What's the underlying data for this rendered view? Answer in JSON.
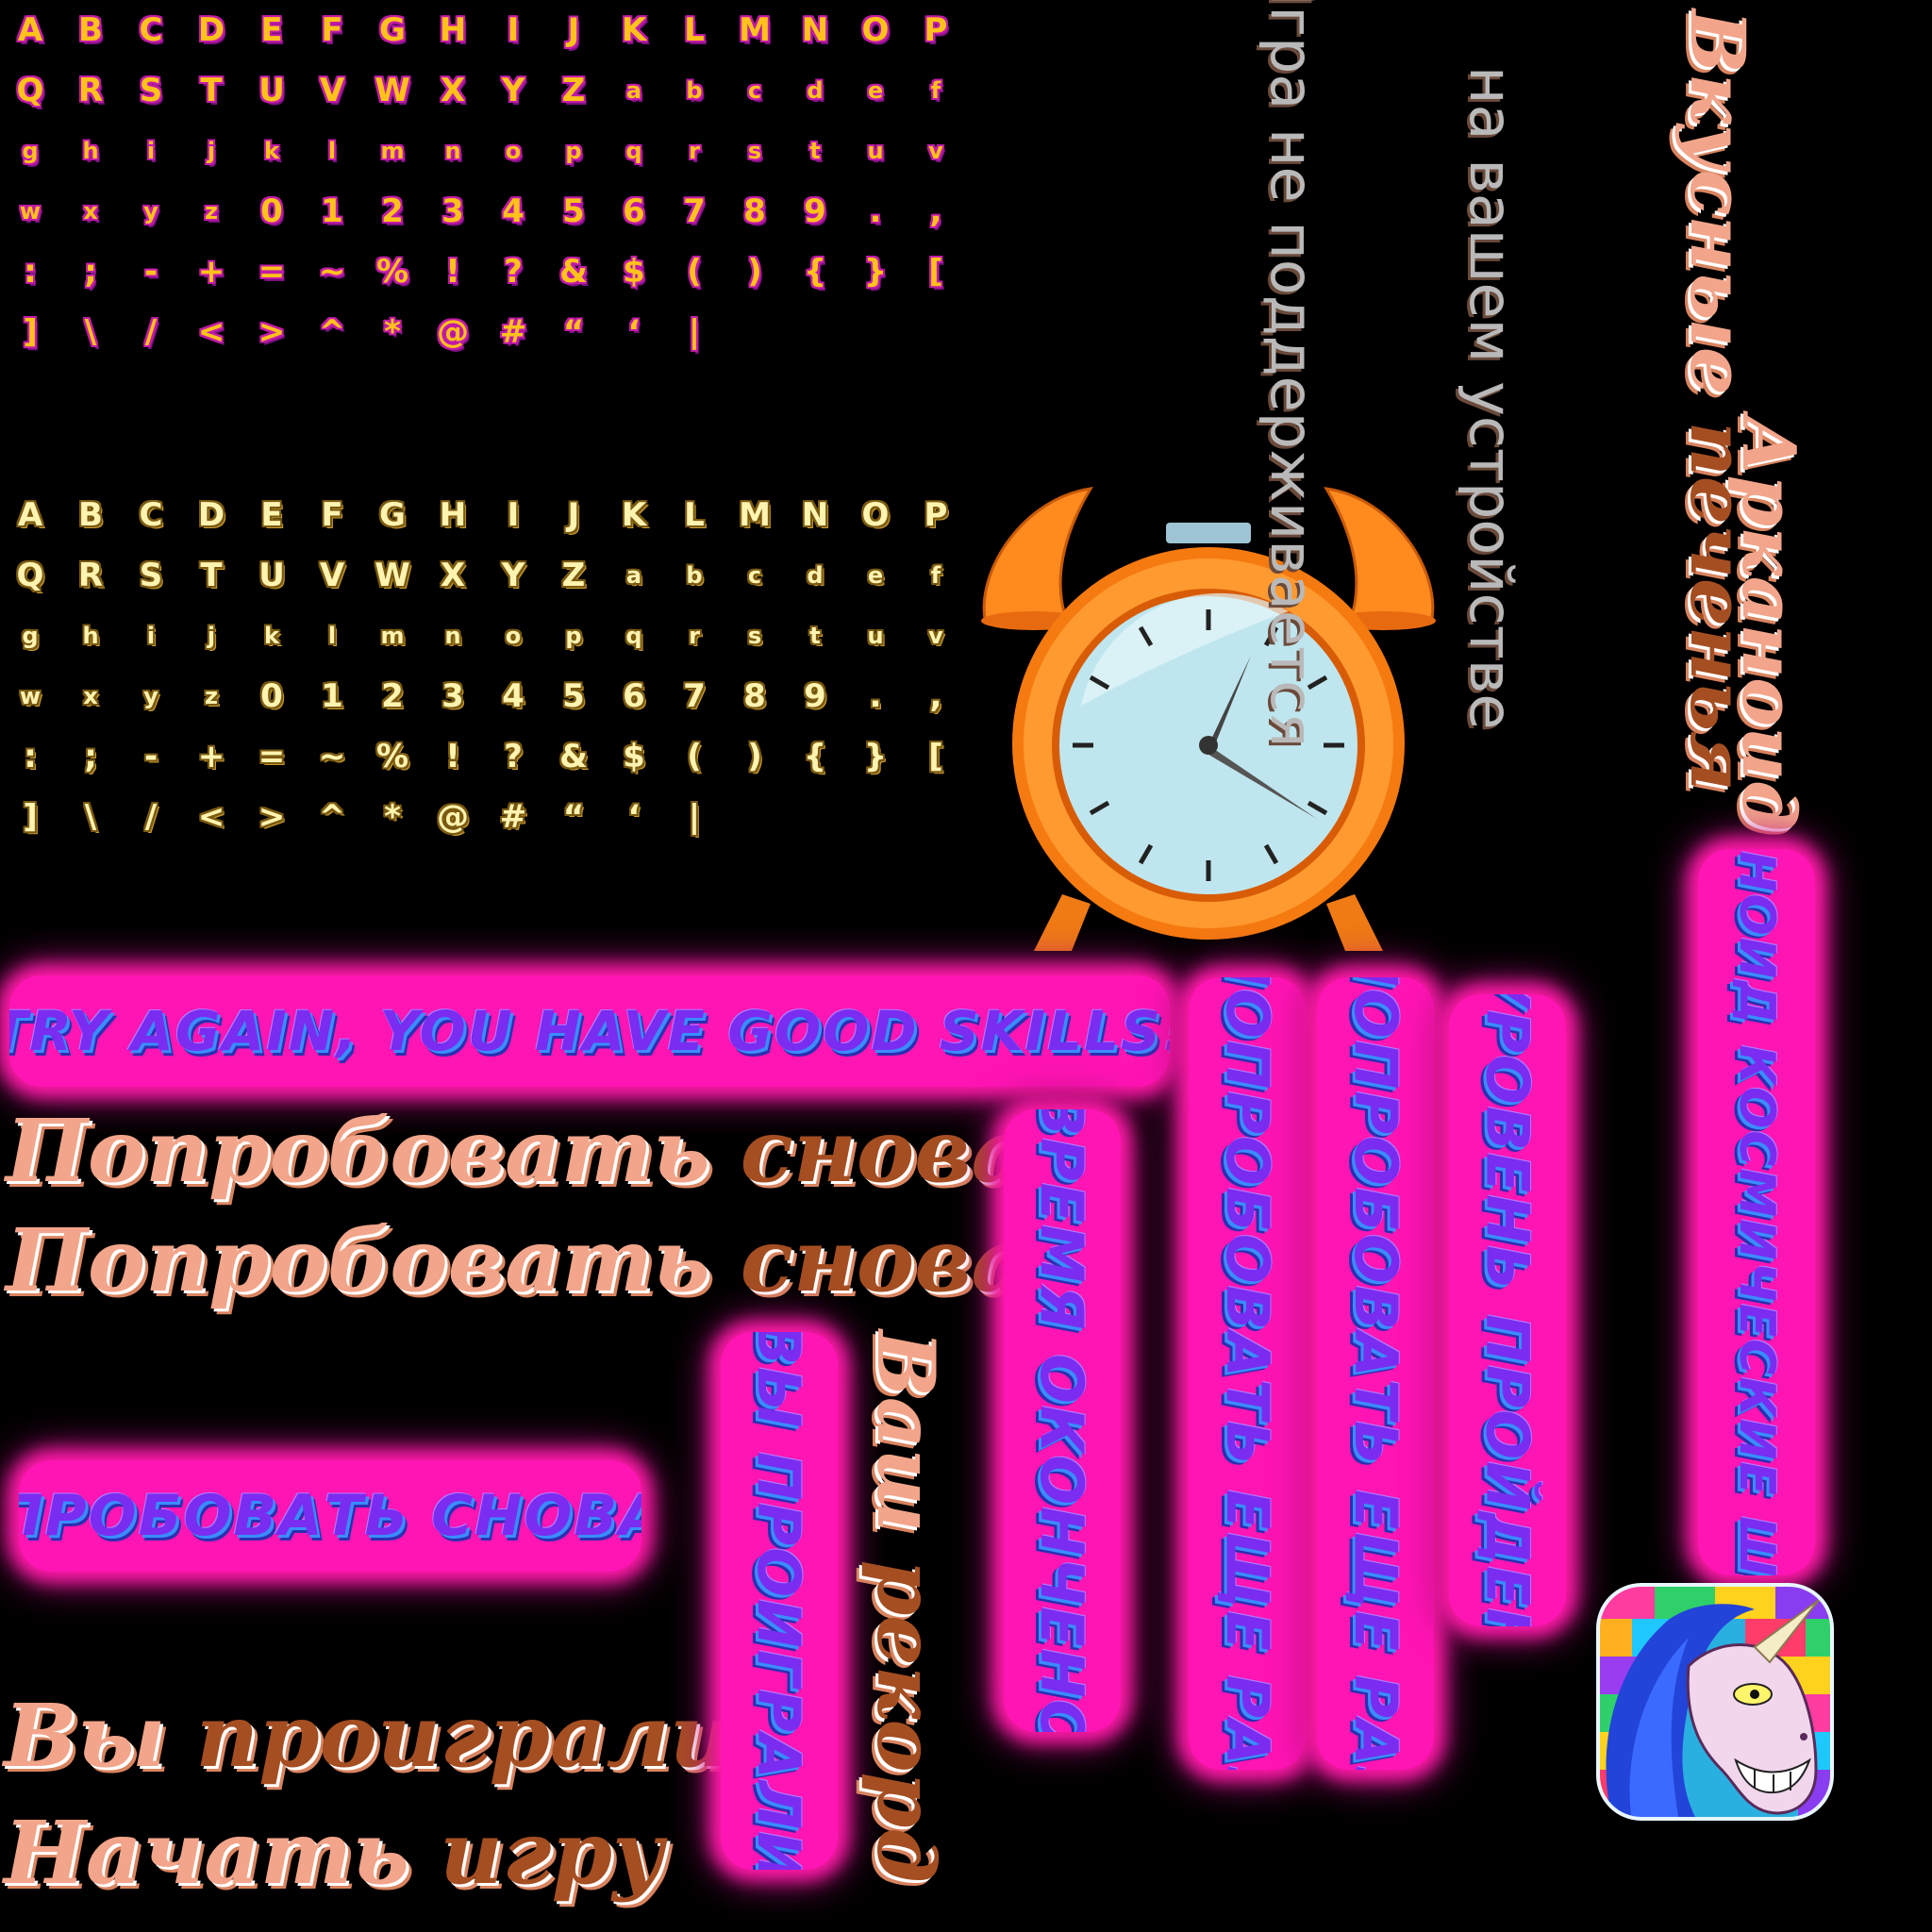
{
  "atlas_top": {
    "rows": [
      [
        "A",
        "B",
        "C",
        "D",
        "E",
        "F",
        "G",
        "H",
        "I",
        "J",
        "K",
        "L",
        "M",
        "N",
        "O",
        "P"
      ],
      [
        "Q",
        "R",
        "S",
        "T",
        "U",
        "V",
        "W",
        "X",
        "Y",
        "Z",
        "a",
        "b",
        "c",
        "d",
        "e",
        "f"
      ],
      [
        "g",
        "h",
        "i",
        "j",
        "k",
        "l",
        "m",
        "n",
        "o",
        "p",
        "q",
        "r",
        "s",
        "t",
        "u",
        "v"
      ],
      [
        "w",
        "x",
        "y",
        "z",
        "0",
        "1",
        "2",
        "3",
        "4",
        "5",
        "6",
        "7",
        "8",
        "9",
        ".",
        ","
      ],
      [
        ":",
        ";",
        "-",
        "+",
        "=",
        "~",
        "%",
        "!",
        "?",
        "&",
        "$",
        "(",
        ")",
        "{",
        "}",
        "["
      ],
      [
        "]",
        "\\",
        "/",
        "<",
        ">",
        "^",
        "*",
        "@",
        "#",
        "“",
        "‘",
        "|"
      ]
    ]
  },
  "atlas_bottom": {
    "rows": [
      [
        "A",
        "B",
        "C",
        "D",
        "E",
        "F",
        "G",
        "H",
        "I",
        "J",
        "K",
        "L",
        "M",
        "N",
        "O",
        "P"
      ],
      [
        "Q",
        "R",
        "S",
        "T",
        "U",
        "V",
        "W",
        "X",
        "Y",
        "Z",
        "a",
        "b",
        "c",
        "d",
        "e",
        "f"
      ],
      [
        "g",
        "h",
        "i",
        "j",
        "k",
        "l",
        "m",
        "n",
        "o",
        "p",
        "q",
        "r",
        "s",
        "t",
        "u",
        "v"
      ],
      [
        "w",
        "x",
        "y",
        "z",
        "0",
        "1",
        "2",
        "3",
        "4",
        "5",
        "6",
        "7",
        "8",
        "9",
        ".",
        ","
      ],
      [
        ":",
        ";",
        "-",
        "+",
        "=",
        "~",
        "%",
        "!",
        "?",
        "&",
        "$",
        "(",
        ")",
        "{",
        "}",
        "["
      ],
      [
        "]",
        "\\",
        "/",
        "<",
        ">",
        "^",
        "*",
        "@",
        "#",
        "“",
        "‘",
        "|"
      ]
    ]
  },
  "banners": {
    "try_again_en": "TRY AGAIN, YOU HAVE GOOD SKILLS!",
    "try_again_ru": "ПРОБОВАТЬ СНОВА",
    "you_lost": "ВЫ ПРОИГРАЛИ",
    "time_over": "ВРЕМЯ ОКОНЧЕНО",
    "try_once_more_1": "ПОПРОБОВАТЬ ЕЩЕ РАЗ",
    "try_once_more_2": "ПОПРОБОВАТЬ ЕЩЕ РАЗ",
    "level_passed": "УРОВЕНЬ ПРОЙДЕН",
    "arkanoid_space": "АРКАНОИД КОСМИЧЕСКИЕ ШАРЫ!"
  },
  "script_labels": {
    "try_again_1": [
      "Попробовать",
      "снова"
    ],
    "try_again_2": [
      "Попробовать",
      "снова"
    ],
    "you_lost": [
      "Вы",
      "проиграли"
    ],
    "start_game": [
      "Начать",
      "игру"
    ],
    "your_record": [
      "Ваш",
      "рекорд"
    ],
    "arkanoid": "Арканоид",
    "space_balls": [
      "Вкусные",
      "печенья"
    ]
  },
  "device_msg": {
    "line1": "Игра не поддерживается",
    "line2": "на вашем устройстве"
  },
  "icons": {
    "clock": "alarm-clock-icon",
    "unicorn": "unicorn-app-icon"
  },
  "colors": {
    "glow": "#ff14b4",
    "banner_text": "#7a2cf0",
    "clock_body": "#f57a10",
    "clock_face": "#bfe6ee"
  }
}
